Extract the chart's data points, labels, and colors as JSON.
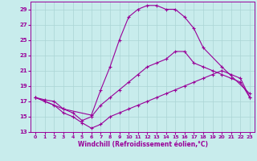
{
  "xlabel": "Windchill (Refroidissement éolien,°C)",
  "background_color": "#c8ecec",
  "grid_color": "#aad4d4",
  "line_color": "#990099",
  "xlim": [
    -0.5,
    23.5
  ],
  "ylim": [
    13,
    30
  ],
  "yticks": [
    13,
    15,
    17,
    19,
    21,
    23,
    25,
    27,
    29
  ],
  "xticks": [
    0,
    1,
    2,
    3,
    4,
    5,
    6,
    7,
    8,
    9,
    10,
    11,
    12,
    13,
    14,
    15,
    16,
    17,
    18,
    19,
    20,
    21,
    22,
    23
  ],
  "series": [
    {
      "x": [
        0,
        3,
        6,
        7,
        8,
        9,
        10,
        11,
        12,
        13,
        14,
        15,
        16,
        17,
        18,
        20,
        23
      ],
      "y": [
        17.5,
        16.0,
        15.2,
        18.5,
        21.5,
        25.0,
        28.0,
        29.0,
        29.5,
        29.5,
        29.0,
        29.0,
        28.0,
        26.5,
        24.0,
        21.5,
        18.0
      ]
    },
    {
      "x": [
        0,
        1,
        2,
        3,
        4,
        5,
        6,
        7,
        8,
        9,
        10,
        11,
        12,
        13,
        14,
        15,
        16,
        17,
        18,
        19,
        20,
        21,
        22,
        23
      ],
      "y": [
        17.5,
        17.2,
        17.0,
        16.0,
        15.5,
        14.5,
        15.0,
        16.5,
        17.5,
        18.5,
        19.5,
        20.5,
        21.5,
        22.0,
        22.5,
        23.5,
        23.5,
        22.0,
        21.5,
        21.0,
        20.5,
        20.0,
        19.5,
        17.5
      ]
    },
    {
      "x": [
        0,
        1,
        2,
        3,
        4,
        5,
        6,
        7,
        8,
        9,
        10,
        11,
        12,
        13,
        14,
        15,
        16,
        17,
        18,
        19,
        20,
        21,
        22,
        23
      ],
      "y": [
        17.5,
        17.0,
        16.5,
        15.5,
        15.0,
        14.2,
        13.5,
        14.0,
        15.0,
        15.5,
        16.0,
        16.5,
        17.0,
        17.5,
        18.0,
        18.5,
        19.0,
        19.5,
        20.0,
        20.5,
        21.0,
        20.5,
        20.0,
        17.5
      ]
    }
  ]
}
